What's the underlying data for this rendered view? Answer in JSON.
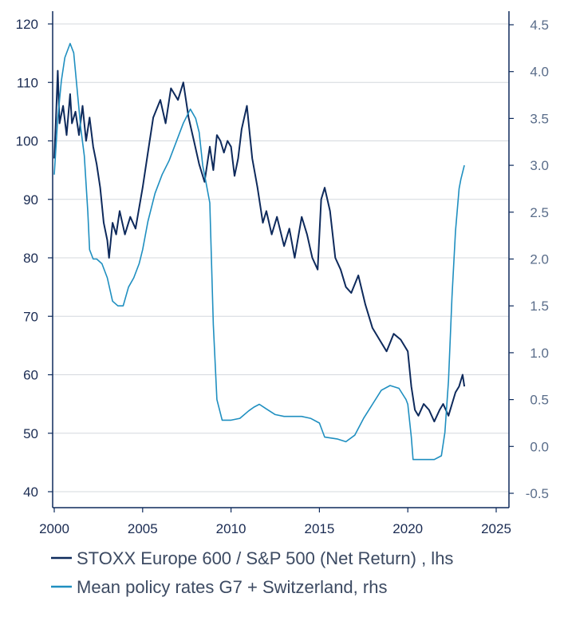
{
  "chart_data": {
    "type": "line",
    "x_ticks": [
      "2000",
      "2005",
      "2010",
      "2015",
      "2020",
      "2025"
    ],
    "x_range": [
      2000,
      2025
    ],
    "y_left": {
      "range": [
        40,
        120
      ],
      "ticks": [
        "40",
        "50",
        "60",
        "70",
        "80",
        "90",
        "100",
        "110",
        "120"
      ]
    },
    "y_right": {
      "range": [
        -0.5,
        4.5
      ],
      "ticks": [
        "-0.5",
        "0.0",
        "0.5",
        "1.0",
        "1.5",
        "2.0",
        "2.5",
        "3.0",
        "3.5",
        "4.0",
        "4.5"
      ]
    },
    "grid": "horizontal",
    "legend_position": "bottom",
    "colors": {
      "lhs": "#0e2a5c",
      "rhs": "#1f8fc0"
    },
    "series": [
      {
        "name": "STOXX Europe 600 / S&P 500 (Net Return) , lhs",
        "axis": "left",
        "x": [
          2000.0,
          2000.1,
          2000.2,
          2000.3,
          2000.5,
          2000.7,
          2000.9,
          2001.0,
          2001.2,
          2001.4,
          2001.6,
          2001.8,
          2002.0,
          2002.2,
          2002.4,
          2002.6,
          2002.8,
          2003.0,
          2003.1,
          2003.3,
          2003.5,
          2003.7,
          2004.0,
          2004.3,
          2004.6,
          2005.0,
          2005.3,
          2005.6,
          2006.0,
          2006.3,
          2006.6,
          2007.0,
          2007.3,
          2007.6,
          2007.9,
          2008.2,
          2008.5,
          2008.8,
          2009.0,
          2009.2,
          2009.4,
          2009.6,
          2009.8,
          2010.0,
          2010.2,
          2010.4,
          2010.6,
          2010.9,
          2011.2,
          2011.5,
          2011.8,
          2012.0,
          2012.3,
          2012.6,
          2013.0,
          2013.3,
          2013.6,
          2014.0,
          2014.3,
          2014.6,
          2014.9,
          2015.1,
          2015.3,
          2015.6,
          2015.9,
          2016.2,
          2016.5,
          2016.8,
          2017.2,
          2017.6,
          2018.0,
          2018.4,
          2018.8,
          2019.2,
          2019.6,
          2020.0,
          2020.2,
          2020.4,
          2020.6,
          2020.9,
          2021.2,
          2021.5,
          2021.8,
          2022.0,
          2022.3,
          2022.5,
          2022.7,
          2022.9,
          2023.1,
          2023.2
        ],
        "y": [
          97,
          104,
          112,
          103,
          106,
          101,
          108,
          103,
          105,
          101,
          106,
          100,
          104,
          99,
          96,
          92,
          86,
          83,
          80,
          86,
          84,
          88,
          84,
          87,
          85,
          92,
          98,
          104,
          107,
          103,
          109,
          107,
          110,
          104,
          100,
          96,
          93,
          99,
          95,
          101,
          100,
          98,
          100,
          99,
          94,
          97,
          102,
          106,
          97,
          92,
          86,
          88,
          84,
          87,
          82,
          85,
          80,
          87,
          84,
          80,
          78,
          90,
          92,
          88,
          80,
          78,
          75,
          74,
          77,
          72,
          68,
          66,
          64,
          67,
          66,
          64,
          58,
          54,
          53,
          55,
          54,
          52,
          54,
          55,
          53,
          55,
          57,
          58,
          60,
          58
        ]
      },
      {
        "name": "Mean policy rates G7 + Switzerland, rhs",
        "axis": "right",
        "x": [
          2000.0,
          2000.2,
          2000.4,
          2000.6,
          2000.9,
          2001.1,
          2001.3,
          2001.5,
          2001.7,
          2001.9,
          2002.0,
          2002.2,
          2002.4,
          2002.7,
          2003.0,
          2003.3,
          2003.6,
          2003.9,
          2004.2,
          2004.5,
          2004.8,
          2005.0,
          2005.3,
          2005.7,
          2006.1,
          2006.5,
          2006.9,
          2007.3,
          2007.7,
          2008.0,
          2008.2,
          2008.4,
          2008.6,
          2008.8,
          2009.0,
          2009.2,
          2009.5,
          2010.0,
          2010.5,
          2011.0,
          2011.3,
          2011.6,
          2012.0,
          2012.5,
          2013.0,
          2014.0,
          2014.5,
          2015.0,
          2015.3,
          2016.0,
          2016.5,
          2017.0,
          2017.5,
          2018.0,
          2018.5,
          2019.0,
          2019.5,
          2019.9,
          2020.0,
          2020.2,
          2020.3,
          2021.0,
          2021.5,
          2021.9,
          2022.1,
          2022.3,
          2022.5,
          2022.7,
          2022.9,
          2023.0,
          2023.2
        ],
        "y": [
          2.9,
          3.5,
          3.9,
          4.15,
          4.3,
          4.2,
          3.8,
          3.4,
          3.1,
          2.5,
          2.1,
          2.0,
          2.0,
          1.95,
          1.8,
          1.55,
          1.5,
          1.5,
          1.7,
          1.8,
          1.95,
          2.1,
          2.4,
          2.7,
          2.9,
          3.05,
          3.25,
          3.45,
          3.6,
          3.5,
          3.35,
          3.0,
          2.8,
          2.6,
          1.3,
          0.5,
          0.28,
          0.28,
          0.3,
          0.38,
          0.42,
          0.45,
          0.4,
          0.34,
          0.32,
          0.32,
          0.3,
          0.25,
          0.1,
          0.08,
          0.05,
          0.12,
          0.3,
          0.45,
          0.6,
          0.65,
          0.62,
          0.5,
          0.45,
          0.1,
          -0.14,
          -0.14,
          -0.14,
          -0.1,
          0.15,
          0.7,
          1.6,
          2.3,
          2.75,
          2.85,
          3.0
        ]
      }
    ]
  }
}
